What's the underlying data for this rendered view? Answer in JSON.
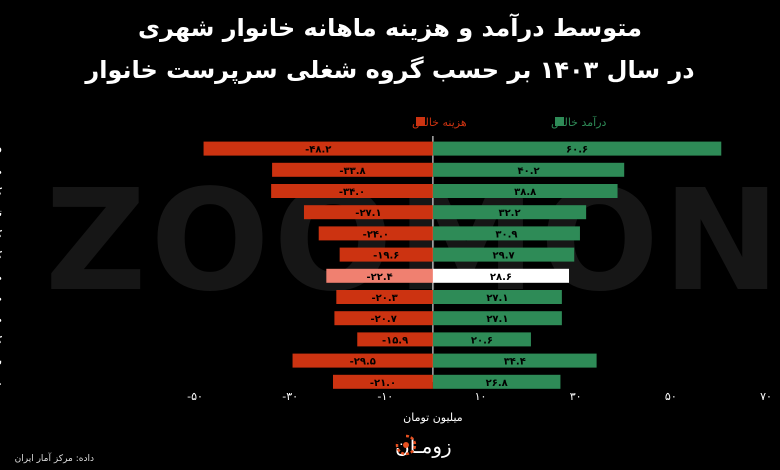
{
  "title_line1": "متوسط درآمد و هزینه ماهانه خانوار شهری",
  "title_line2": "در سال ۱۴۰۳ بر حسب گروه شغلی سرپرست خانوار",
  "watermark": "ZOOMON",
  "source": "داده: مرکز آمار ایران",
  "logo_text": "زومـان",
  "colors": {
    "income": "#2e8b57",
    "expense": "#cc3311",
    "income_highlight": "#ffffff",
    "expense_highlight": "#f08070",
    "background": "#000000"
  },
  "chart_data": {
    "type": "bar",
    "orientation": "horizontal",
    "xlabel": "میلیون تومان",
    "xlim": [
      -50,
      70
    ],
    "xticks": [
      -50,
      -30,
      -10,
      10,
      30,
      50,
      70
    ],
    "xtick_labels": [
      "-۵۰",
      "-۳۰",
      "-۱۰",
      "۱۰",
      "۳۰",
      "۵۰",
      "۷۰"
    ],
    "legend": [
      "درآمد خالص",
      "هزینه خالص"
    ],
    "legend_position": "top",
    "highlight_category": "میانگین",
    "categories": [
      "قانون‌گذاران، مقامات عالی رتبه و مدیران",
      "متخصصان (علمی و فنی)",
      "کارمندان امور اداری و دفتری",
      "تکنسین‌ها و دستیاران",
      "کارکنان خدماتی و فروشندگان",
      "کارکنان ماهر کشاورزی، جنگلداری و ماهی‌گیری",
      "میانگین",
      "صنعتگران و کارکنان مشاغل مربوط",
      "متصدیان ماشین‌آلات و رانندگان وسایل نقلیه",
      "کارگران ساده",
      "سایر و اظهار نشده",
      "غیر شاغل"
    ],
    "series": [
      {
        "name": "درآمد خالص",
        "values": [
          60.6,
          40.2,
          38.8,
          32.2,
          30.9,
          29.7,
          28.6,
          27.1,
          27.1,
          20.6,
          34.4,
          26.8
        ],
        "labels": [
          "۶۰.۶",
          "۴۰.۲",
          "۳۸.۸",
          "۳۲.۲",
          "۳۰.۹",
          "۲۹.۷",
          "۲۸.۶",
          "۲۷.۱",
          "۲۷.۱",
          "۲۰.۶",
          "۳۴.۴",
          "۲۶.۸"
        ]
      },
      {
        "name": "هزینه خالص",
        "values": [
          -48.2,
          -33.8,
          -34.0,
          -27.1,
          -24.0,
          -19.6,
          -22.4,
          -20.3,
          -20.7,
          -15.9,
          -29.5,
          -21.0
        ],
        "labels": [
          "-۴۸.۲",
          "-۳۳.۸",
          "-۳۴.۰",
          "-۲۷.۱",
          "-۲۴.۰",
          "-۱۹.۶",
          "-۲۲.۴",
          "-۲۰.۳",
          "-۲۰.۷",
          "-۱۵.۹",
          "-۲۹.۵",
          "-۲۱.۰"
        ]
      }
    ]
  }
}
